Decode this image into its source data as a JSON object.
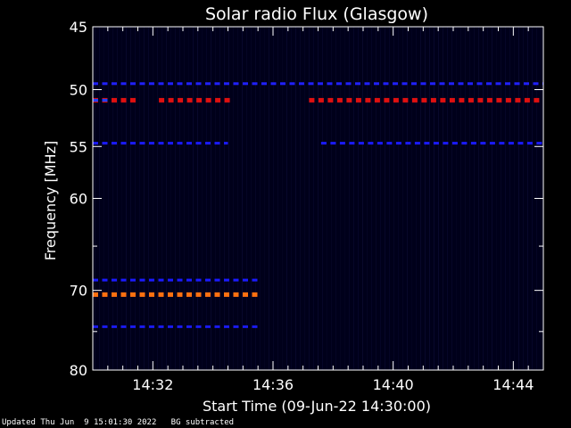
{
  "chart_data": {
    "type": "heatmap",
    "title": "Solar radio Flux (Glasgow)",
    "xlabel": "Start Time (09-Jun-22 14:30:00)",
    "ylabel": "Frequency [MHz]",
    "xlim_minutes": [
      30,
      45
    ],
    "x_ticks": [
      {
        "minute": 32,
        "label": "14:32"
      },
      {
        "minute": 36,
        "label": "14:36"
      },
      {
        "minute": 40,
        "label": "14:40"
      },
      {
        "minute": 44,
        "label": "14:44"
      }
    ],
    "ylim": [
      45,
      80
    ],
    "y_ticks": [
      45,
      50,
      55,
      60,
      70,
      80
    ],
    "y_tick_labels": [
      "45",
      "50",
      "55",
      "60",
      "70",
      "80"
    ],
    "background_color": "#00001a",
    "bands": [
      {
        "freq": 49.5,
        "color": "#2020ff",
        "segments": [
          [
            30.0,
            45.0
          ]
        ]
      },
      {
        "freq": 50.9,
        "color": "#e01010",
        "segments": [
          [
            30.0,
            31.5
          ],
          [
            32.2,
            34.6
          ],
          [
            37.2,
            45.0
          ]
        ]
      },
      {
        "freq": 50.9,
        "color": "#2040ff",
        "segments": [
          [
            30.0,
            30.6
          ]
        ]
      },
      {
        "freq": 54.7,
        "color": "#1a1aff",
        "segments": [
          [
            30.0,
            34.5
          ],
          [
            37.6,
            45.0
          ]
        ]
      },
      {
        "freq": 68.8,
        "color": "#1a1aff",
        "segments": [
          [
            30.0,
            35.5
          ]
        ]
      },
      {
        "freq": 70.5,
        "color": "#ff7010",
        "segments": [
          [
            30.0,
            35.5
          ]
        ]
      },
      {
        "freq": 74.4,
        "color": "#1a1aee",
        "segments": [
          [
            30.0,
            35.5
          ]
        ]
      }
    ]
  },
  "footer": {
    "updated": "Updated Thu Jun  9 15:01:30 2022",
    "bg_note": "BG subtracted"
  }
}
